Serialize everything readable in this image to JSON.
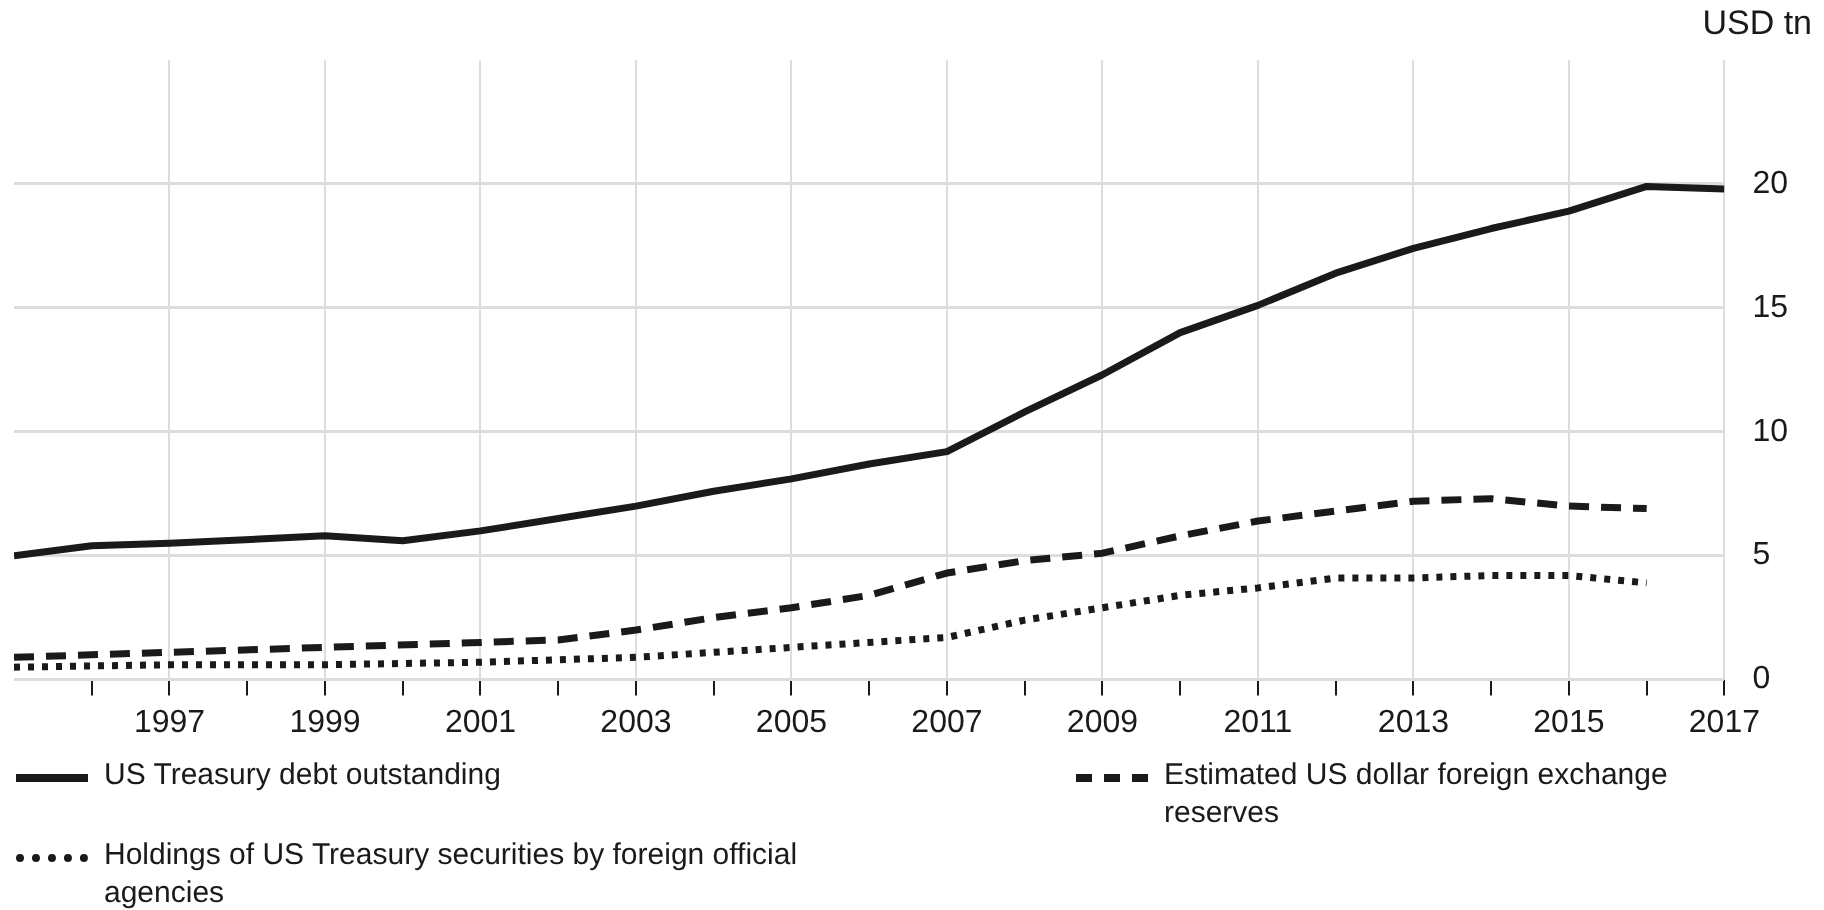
{
  "chart_data": {
    "type": "line",
    "ylabel": "USD tn",
    "xlim": [
      1995,
      2017
    ],
    "ylim": [
      0,
      25
    ],
    "xticks": [
      {
        "value": 1996,
        "label": null
      },
      1997,
      {
        "value": 1998,
        "label": null
      },
      1999,
      {
        "value": 2000,
        "label": null
      },
      2001,
      {
        "value": 2002,
        "label": null
      },
      2003,
      {
        "value": 2004,
        "label": null
      },
      2005,
      {
        "value": 2006,
        "label": null
      },
      2007,
      {
        "value": 2008,
        "label": null
      },
      2009,
      {
        "value": 2010,
        "label": null
      },
      2011,
      {
        "value": 2012,
        "label": null
      },
      2013,
      {
        "value": 2014,
        "label": null
      },
      2015,
      {
        "value": 2016,
        "label": null
      },
      2017
    ],
    "yticks": [
      0,
      5,
      10,
      15,
      20
    ],
    "grid": true,
    "legend": "bottom",
    "marker": "none",
    "series": [
      {
        "name": "US Treasury debt outstanding",
        "color": "#1a1a1a",
        "line_style": "solid",
        "x": [
          1995,
          1996,
          1997,
          1999,
          2000,
          2001,
          2002,
          2003,
          2004,
          2005,
          2006,
          2007,
          2008,
          2009,
          2010,
          2011,
          2012,
          2013,
          2014,
          2015,
          2016,
          2017
        ],
        "values": [
          5.0,
          5.4,
          5.5,
          5.8,
          5.6,
          6.0,
          6.5,
          7.0,
          7.6,
          8.1,
          8.7,
          9.2,
          10.8,
          12.3,
          14.0,
          15.1,
          16.4,
          17.4,
          18.2,
          18.9,
          19.9,
          19.8
        ]
      },
      {
        "name": "Estimated US dollar foreign exchange reserves",
        "color": "#1a1a1a",
        "line_style": "dashed",
        "x": [
          1995,
          1997,
          1999,
          2001,
          2002,
          2003,
          2004,
          2005,
          2006,
          2007,
          2008,
          2009,
          2010,
          2011,
          2012,
          2013,
          2014,
          2015,
          2016
        ],
        "values": [
          0.9,
          1.1,
          1.3,
          1.5,
          1.6,
          2.0,
          2.5,
          2.9,
          3.4,
          4.3,
          4.8,
          5.1,
          5.8,
          6.4,
          6.8,
          7.2,
          7.3,
          7.0,
          6.9
        ]
      },
      {
        "name": "Holdings of US Treasury securities by foreign official agencies",
        "color": "#1a1a1a",
        "line_style": "dotted",
        "x": [
          1995,
          1997,
          1999,
          2001,
          2003,
          2005,
          2007,
          2008,
          2009,
          2010,
          2011,
          2012,
          2013,
          2014,
          2015,
          2016
        ],
        "values": [
          0.5,
          0.6,
          0.6,
          0.7,
          0.9,
          1.3,
          1.7,
          2.4,
          2.9,
          3.4,
          3.7,
          4.1,
          4.1,
          4.2,
          4.2,
          3.9
        ]
      }
    ]
  }
}
